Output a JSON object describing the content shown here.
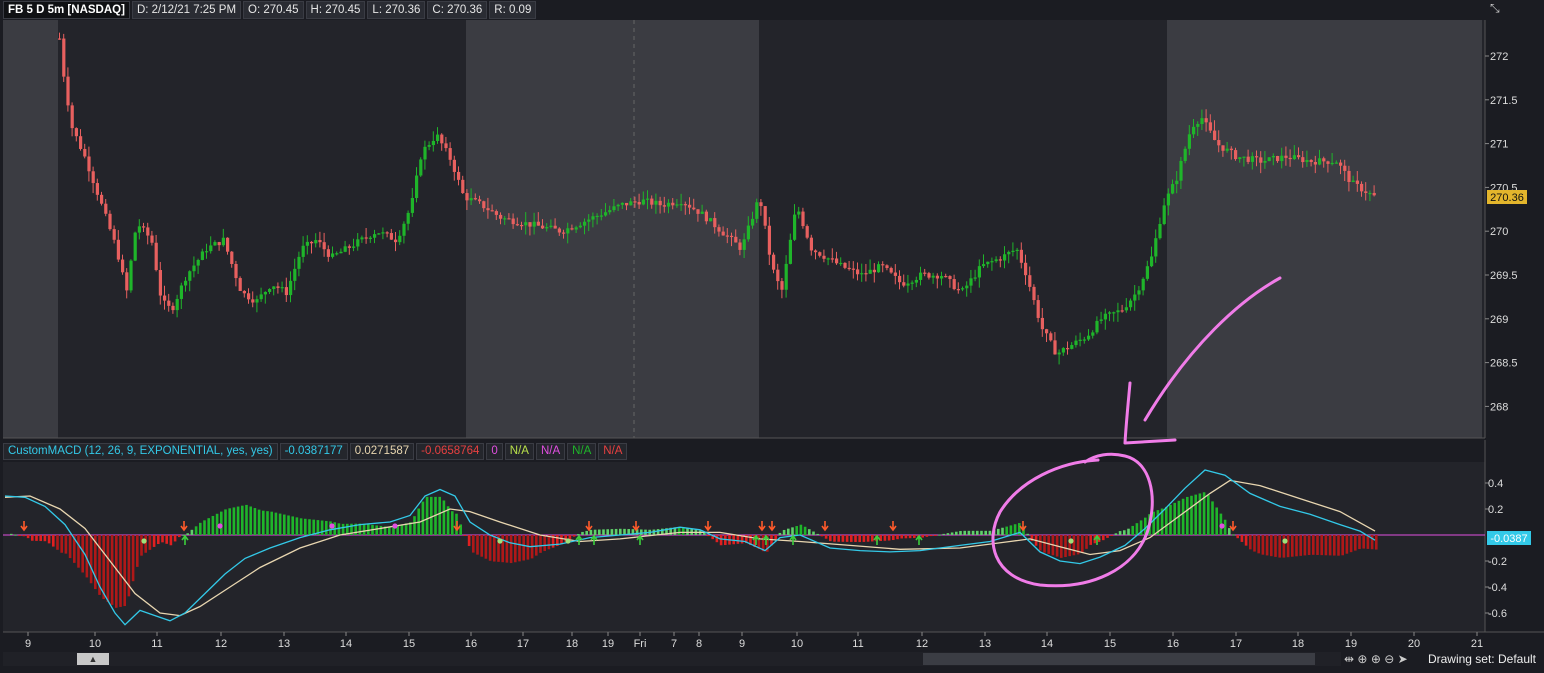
{
  "header": {
    "symbol": "FB 5 D 5m [NASDAQ]",
    "date": "D: 2/12/21 7:25 PM",
    "open": "O: 270.45",
    "high": "H: 270.45",
    "low": "L: 270.36",
    "close": "C: 270.36",
    "range": "R: 0.09"
  },
  "price_axis": {
    "ticks": [
      "272",
      "271.5",
      "271",
      "270.5",
      "270",
      "269.5",
      "269",
      "268.5",
      "268"
    ],
    "last_price": "270.36"
  },
  "macd_header": {
    "name": "CustomMACD (12, 26, 9, EXPONENTIAL, yes, yes)",
    "value": "-0.0387177",
    "avg": "0.0271587",
    "diff": "-0.0658764",
    "zero": "0",
    "na1": "N/A",
    "na2": "N/A",
    "na3": "N/A",
    "na4": "N/A"
  },
  "macd_axis": {
    "ticks": [
      "0.4",
      "0.2",
      "-0.2",
      "-0.4",
      "-0.6"
    ],
    "last_value": "-0.0387"
  },
  "time_axis": {
    "labels": [
      "9",
      "10",
      "11",
      "12",
      "13",
      "14",
      "15",
      "16",
      "17",
      "18",
      "19",
      "Fri",
      "7",
      "8",
      "9",
      "10",
      "11",
      "12",
      "13",
      "14",
      "15",
      "16",
      "17",
      "18",
      "19",
      "20",
      "21"
    ]
  },
  "footer": {
    "drawing_set": "Drawing set: Default"
  },
  "colors": {
    "up": "#1fb52a",
    "down": "#e8605f",
    "macd_line": "#33c9e8",
    "signal_line": "#e8d6b0",
    "annotation": "#f07ce8",
    "last_price_bg": "#e3b52c"
  }
}
